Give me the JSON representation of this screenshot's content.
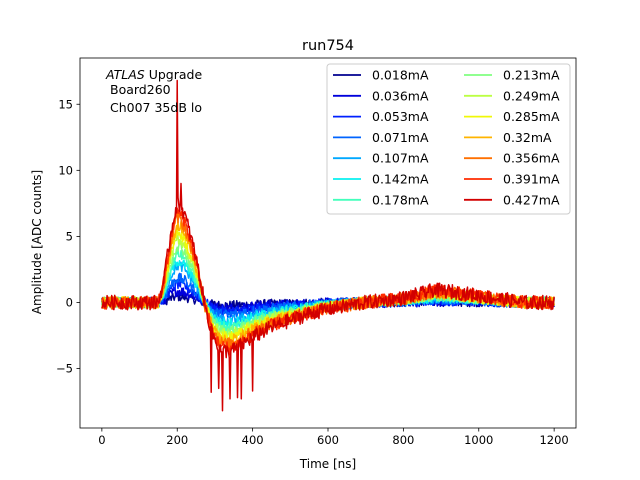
{
  "chart_data": {
    "type": "line",
    "title": "run754",
    "xlabel": "Time [ns]",
    "ylabel": "Amplitude [ADC counts]",
    "xlim": [
      -58,
      1258
    ],
    "ylim": [
      -9.5,
      18.5
    ],
    "xticks": [
      0,
      200,
      400,
      600,
      800,
      1000,
      1200
    ],
    "xtick_labels": [
      "0",
      "200",
      "400",
      "600",
      "800",
      "1000",
      "1200"
    ],
    "yticks": [
      -5,
      0,
      5,
      10,
      15
    ],
    "ytick_labels": [
      "−5",
      "0",
      "5",
      "10",
      "15"
    ],
    "grid": false,
    "legend_position": "top-right",
    "legend_columns": 2,
    "annotation": {
      "atlas": "ATLAS",
      "upgrade": " Upgrade",
      "line2": "Board260",
      "line3": "Ch007 35dB lo"
    },
    "template_x": [
      0,
      150,
      165,
      180,
      190,
      200,
      210,
      220,
      235,
      250,
      262,
      275,
      295,
      315,
      340,
      370,
      400,
      450,
      500,
      550,
      600,
      650,
      700,
      750,
      800,
      850,
      880,
      920,
      960,
      1000,
      1040,
      1080,
      1120,
      1160,
      1200
    ],
    "template_y": [
      0,
      0,
      0.2,
      0.55,
      0.75,
      0.88,
      0.85,
      0.78,
      0.6,
      0.4,
      0.18,
      -0.05,
      -0.3,
      -0.42,
      -0.44,
      -0.38,
      -0.31,
      -0.22,
      -0.16,
      -0.1,
      -0.06,
      -0.03,
      0.0,
      0.02,
      0.04,
      0.08,
      0.11,
      0.1,
      0.08,
      0.06,
      0.04,
      0.02,
      0.0,
      0.0,
      0.0
    ],
    "series": [
      {
        "name": "0.018mA",
        "color": "#00008f",
        "peak": 0.5,
        "noise": 0.35,
        "spike": 0.0
      },
      {
        "name": "0.036mA",
        "color": "#0000dc",
        "peak": 1.0,
        "noise": 0.4,
        "spike": 0.0
      },
      {
        "name": "0.053mA",
        "color": "#0020ff",
        "peak": 1.6,
        "noise": 0.4,
        "spike": 0.0
      },
      {
        "name": "0.071mA",
        "color": "#0064ff",
        "peak": 2.1,
        "noise": 0.4,
        "spike": 0.0
      },
      {
        "name": "0.107mA",
        "color": "#00a8ff",
        "peak": 3.2,
        "noise": 0.4,
        "spike": 0.0
      },
      {
        "name": "0.142mA",
        "color": "#08f0f0",
        "peak": 3.6,
        "noise": 0.4,
        "spike": 0.0
      },
      {
        "name": "0.178mA",
        "color": "#43ffbc",
        "peak": 4.3,
        "noise": 0.4,
        "spike": 0.0
      },
      {
        "name": "0.213mA",
        "color": "#80ff80",
        "peak": 4.9,
        "noise": 0.4,
        "spike": 0.0
      },
      {
        "name": "0.249mA",
        "color": "#bcff43",
        "peak": 5.5,
        "noise": 0.4,
        "spike": 0.0
      },
      {
        "name": "0.285mA",
        "color": "#f0f808",
        "peak": 6.1,
        "noise": 0.45,
        "spike": 0.0
      },
      {
        "name": "0.32mA",
        "color": "#ffb400",
        "peak": 6.7,
        "noise": 0.45,
        "spike": 0.0
      },
      {
        "name": "0.356mA",
        "color": "#ff7000",
        "peak": 7.3,
        "noise": 0.5,
        "spike": 0.0
      },
      {
        "name": "0.391mA",
        "color": "#ff2c00",
        "peak": 7.9,
        "noise": 0.5,
        "spike": 0.0
      },
      {
        "name": "0.427mA",
        "color": "#d20000",
        "peak": 8.5,
        "noise": 0.55,
        "spike": 1.0
      }
    ],
    "spikes_x": [
      185,
      195,
      200,
      205,
      210,
      290,
      310,
      320,
      340,
      360,
      370,
      400,
      415
    ],
    "spikes_y": [
      11,
      15,
      16.8,
      13,
      9,
      -6.8,
      -6.5,
      -8.2,
      -7.3,
      -7.2,
      -7.3,
      -6.7,
      -6.2
    ]
  }
}
